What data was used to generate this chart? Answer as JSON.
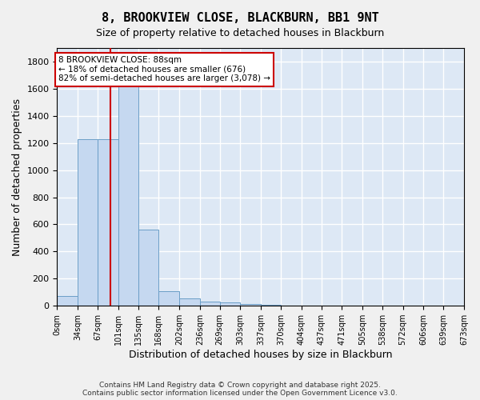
{
  "title": "8, BROOKVIEW CLOSE, BLACKBURN, BB1 9NT",
  "subtitle": "Size of property relative to detached houses in Blackburn",
  "xlabel": "Distribution of detached houses by size in Blackburn",
  "ylabel": "Number of detached properties",
  "bar_color": "#c5d8f0",
  "bar_edge_color": "#6b9ec7",
  "background_color": "#dde8f5",
  "grid_color": "#ffffff",
  "property_line_x": 88,
  "property_label": "8 BROOKVIEW CLOSE: 88sqm",
  "annotation_line1": "← 18% of detached houses are smaller (676)",
  "annotation_line2": "82% of semi-detached houses are larger (3,078) →",
  "annotation_box_color": "#ffffff",
  "annotation_box_edge": "#cc0000",
  "vline_color": "#cc0000",
  "bins": [
    0,
    34,
    67,
    101,
    135,
    168,
    202,
    236,
    269,
    303,
    337,
    370,
    404,
    437,
    471,
    505,
    538,
    572,
    606,
    639,
    673
  ],
  "bin_labels": [
    "0sqm",
    "34sqm",
    "67sqm",
    "101sqm",
    "135sqm",
    "168sqm",
    "202sqm",
    "236sqm",
    "269sqm",
    "303sqm",
    "337sqm",
    "370sqm",
    "404sqm",
    "437sqm",
    "471sqm",
    "505sqm",
    "538sqm",
    "572sqm",
    "606sqm",
    "639sqm",
    "673sqm"
  ],
  "bar_heights": [
    75,
    1230,
    1230,
    1650,
    560,
    105,
    55,
    30,
    25,
    15,
    5,
    0,
    0,
    0,
    0,
    0,
    0,
    0,
    0,
    0
  ],
  "ylim": [
    0,
    1900
  ],
  "yticks": [
    0,
    200,
    400,
    600,
    800,
    1000,
    1200,
    1400,
    1600,
    1800
  ],
  "footnote1": "Contains HM Land Registry data © Crown copyright and database right 2025.",
  "footnote2": "Contains public sector information licensed under the Open Government Licence v3.0."
}
